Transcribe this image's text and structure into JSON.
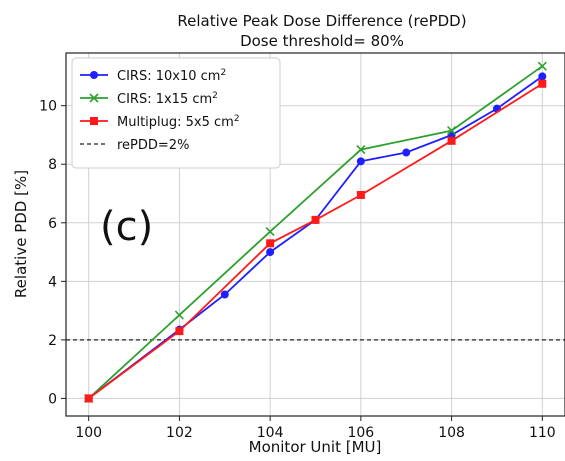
{
  "chart_data": {
    "type": "line",
    "title": "Relative Peak Dose Difference (rePDD)",
    "subtitle": "Dose threshold= 80%",
    "xlabel": "Monitor Unit [MU]",
    "ylabel": "Relative PDD [%]",
    "xlim": [
      99.5,
      110.5
    ],
    "ylim": [
      -0.6,
      11.8
    ],
    "xticks": [
      100,
      102,
      104,
      106,
      108,
      110
    ],
    "yticks": [
      0,
      2,
      4,
      6,
      8,
      10
    ],
    "grid": true,
    "legend_position": "top-left",
    "panel_label": "(c)",
    "series": [
      {
        "name": "CIRS: 10x10 cm",
        "superscript": "2",
        "color": "#1f1fff",
        "marker": "circle",
        "x": [
          100,
          102,
          103,
          104,
          105,
          106,
          107,
          108,
          109,
          110
        ],
        "y": [
          0.0,
          2.35,
          3.55,
          5.0,
          6.1,
          8.1,
          8.4,
          9.0,
          9.9,
          11.0
        ]
      },
      {
        "name": "CIRS: 1x15 cm",
        "superscript": "2",
        "color": "#2ca02c",
        "marker": "x",
        "x": [
          100,
          102,
          104,
          106,
          108,
          110
        ],
        "y": [
          0.0,
          2.85,
          5.7,
          8.5,
          9.15,
          11.35
        ]
      },
      {
        "name": "Multiplug: 5x5 cm",
        "superscript": "2",
        "color": "#ff1a1a",
        "marker": "square",
        "x": [
          100,
          102,
          104,
          105,
          106,
          108,
          110
        ],
        "y": [
          0.0,
          2.3,
          5.3,
          6.1,
          6.95,
          8.8,
          10.75
        ]
      }
    ],
    "reference_line": {
      "name": "rePDD=2%",
      "y": 2,
      "color": "#222222",
      "style": "dashed"
    }
  }
}
